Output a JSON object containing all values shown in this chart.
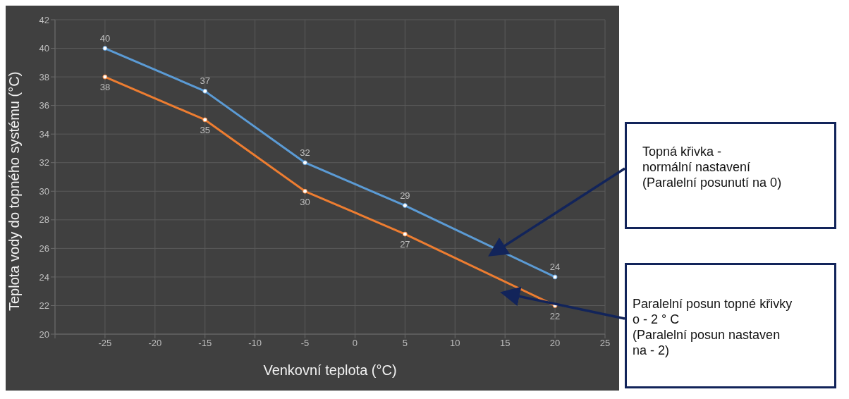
{
  "chart_data": {
    "type": "line",
    "xlabel": "Venkovní teplota (°C)",
    "ylabel": "Teplota vody do topného systému (°C)",
    "x": [
      -25,
      -15,
      -5,
      5,
      20
    ],
    "series": [
      {
        "color": "#5b9bd5",
        "values": [
          40,
          37,
          32,
          29,
          24
        ]
      },
      {
        "color": "#ed7d31",
        "values": [
          38,
          35,
          30,
          27,
          22
        ]
      }
    ],
    "xlim": [
      -30,
      25
    ],
    "xticks": [
      {
        "value": -30,
        "label": null
      },
      -25,
      -20,
      -15,
      -10,
      -5,
      0,
      5,
      10,
      15,
      20,
      25
    ],
    "ylim": [
      20,
      42
    ],
    "yticks": [
      20,
      22,
      24,
      26,
      28,
      30,
      32,
      34,
      36,
      38,
      40,
      42
    ],
    "grid": true,
    "legend": false,
    "marker": "circle",
    "line_style": "solid",
    "data_labels": true,
    "annotations": [
      "Topná křivka -\nnormální nastavení\n(Paralelní posunutí na 0)",
      "Paralelní posun topné křivky\no - 2 ° C\n(Paralelní posun nastaven\nna - 2)"
    ]
  }
}
